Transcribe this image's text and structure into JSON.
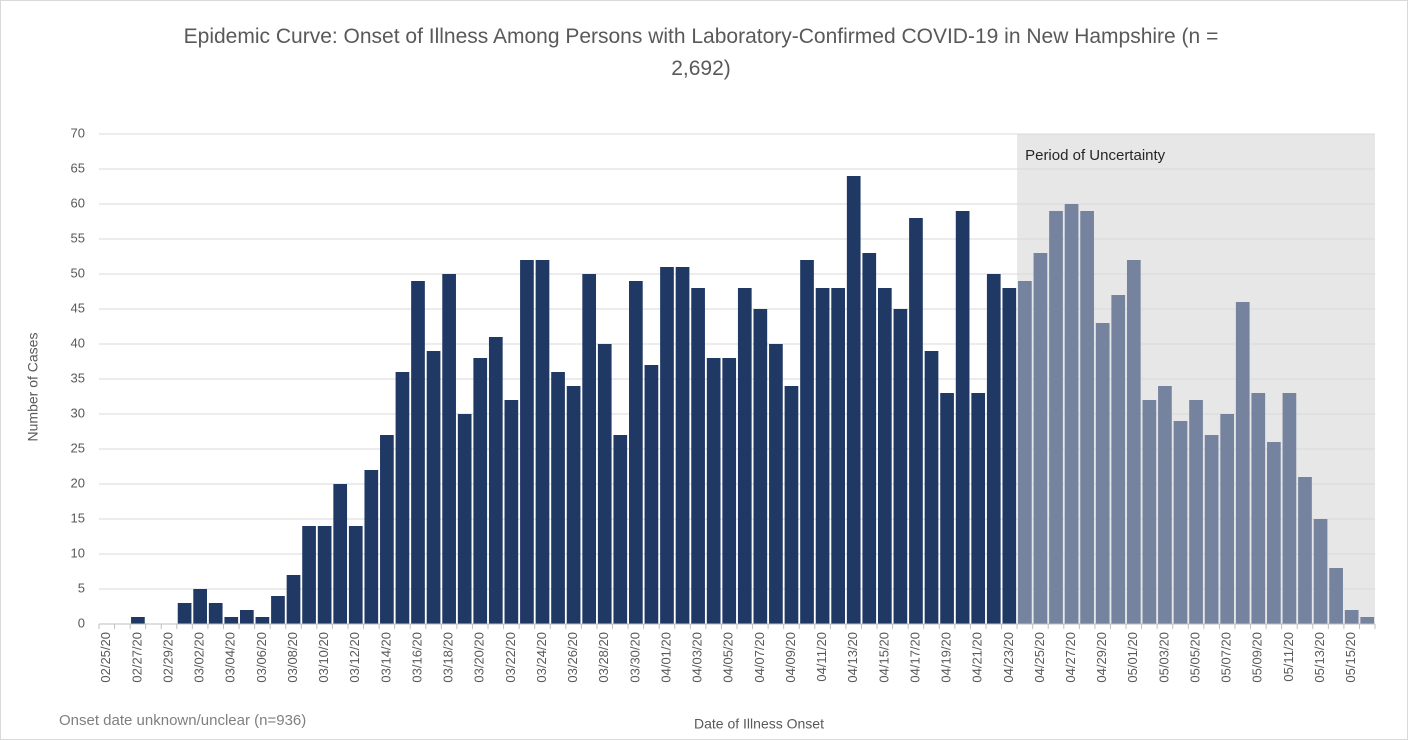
{
  "chart_data": {
    "type": "bar",
    "title": "Epidemic Curve: Onset of Illness Among Persons with Laboratory-Confirmed COVID-19 in New Hampshire (n = 2,692)",
    "x_label": "Date of Illness Onset",
    "y_label": "Number of Cases",
    "footnote": "Onset date unknown/unclear (n=936)",
    "annotation": "Period of Uncertainty",
    "uncertainty_start": 59,
    "color": "#203864",
    "uncertain_color": "#75839e",
    "shade_color": "#e7e7e7",
    "categories": [
      "02/25/20",
      null,
      "02/27/20",
      null,
      "02/29/20",
      null,
      "03/02/20",
      null,
      "03/04/20",
      null,
      "03/06/20",
      null,
      "03/08/20",
      null,
      "03/10/20",
      null,
      "03/12/20",
      null,
      "03/14/20",
      null,
      "03/16/20",
      null,
      "03/18/20",
      null,
      "03/20/20",
      null,
      "03/22/20",
      null,
      "03/24/20",
      null,
      "03/26/20",
      null,
      "03/28/20",
      null,
      "03/30/20",
      null,
      "04/01/20",
      null,
      "04/03/20",
      null,
      "04/05/20",
      null,
      "04/07/20",
      null,
      "04/09/20",
      null,
      "04/11/20",
      null,
      "04/13/20",
      null,
      "04/15/20",
      null,
      "04/17/20",
      null,
      "04/19/20",
      null,
      "04/21/20",
      null,
      "04/23/20",
      null,
      "04/25/20",
      null,
      "04/27/20",
      null,
      "04/29/20",
      null,
      "05/01/20",
      null,
      "05/03/20",
      null,
      "05/05/20",
      null,
      "05/07/20",
      null,
      "05/09/20",
      null,
      "05/11/20",
      null,
      "05/13/20",
      null,
      "05/15/20",
      null
    ],
    "values": [
      0,
      0,
      1,
      0,
      0,
      3,
      5,
      3,
      1,
      2,
      1,
      4,
      7,
      14,
      14,
      20,
      14,
      22,
      27,
      36,
      49,
      39,
      50,
      30,
      38,
      41,
      32,
      52,
      52,
      36,
      34,
      50,
      40,
      27,
      49,
      37,
      51,
      51,
      48,
      38,
      38,
      48,
      45,
      40,
      34,
      52,
      48,
      48,
      64,
      53,
      48,
      45,
      58,
      39,
      33,
      59,
      33,
      50,
      48,
      49,
      53,
      59,
      60,
      59,
      43,
      47,
      52,
      32,
      34,
      29,
      32,
      27,
      30,
      46,
      33,
      26,
      33,
      21,
      15,
      8,
      2,
      1
    ],
    "ylim": [
      0,
      70
    ],
    "yticks": [
      0,
      5,
      10,
      15,
      20,
      25,
      30,
      35,
      40,
      45,
      50,
      55,
      60,
      65,
      70
    ],
    "grid": true
  }
}
